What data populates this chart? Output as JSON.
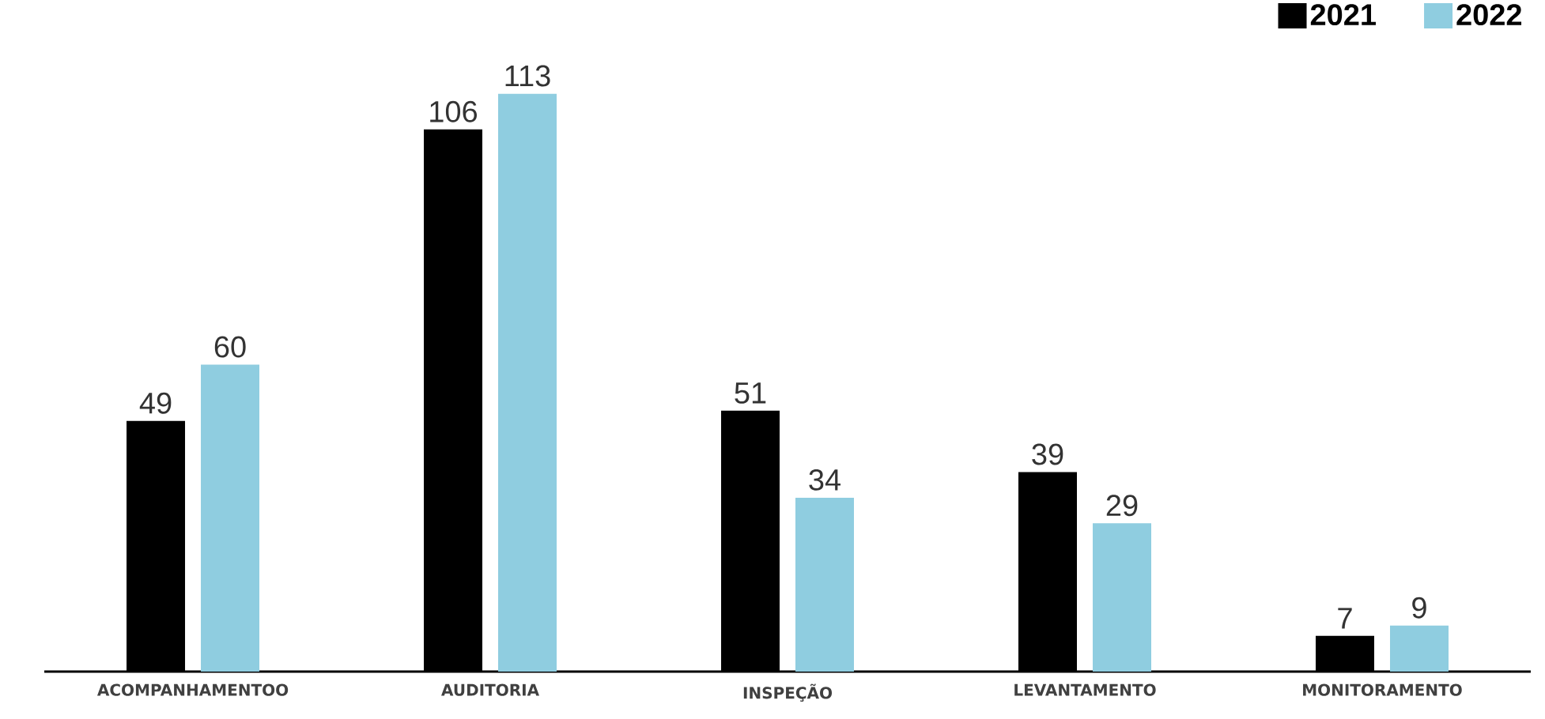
{
  "chart_data": {
    "type": "bar",
    "categories": [
      "ACOMPANHAMENTOO",
      "AUDITORIA",
      "INSPEÇÃO",
      "LEVANTAMENTO",
      "MONITORAMENTO"
    ],
    "series": [
      {
        "name": "2021",
        "color": "#000000",
        "values": [
          49,
          106,
          51,
          39,
          7
        ]
      },
      {
        "name": "2022",
        "color": "#8fcde0",
        "values": [
          60,
          113,
          34,
          29,
          9
        ]
      }
    ],
    "data_labels": true,
    "legend": "top right",
    "tick_labels": "x"
  }
}
